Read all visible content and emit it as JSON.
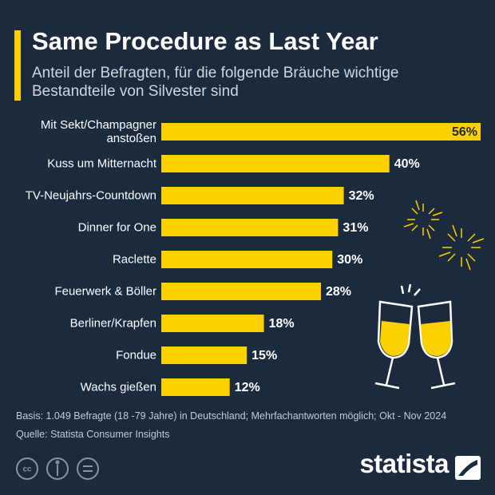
{
  "chart_data": {
    "type": "bar",
    "orientation": "horizontal",
    "title": "Same Procedure as Last Year",
    "subtitle": "Anteil der Befragten, für die folgende Bräuche wichtige Bestandteile von Silvester sind",
    "categories": [
      "Mit Sekt/Champagner anstoßen",
      "Kuss um Mitternacht",
      "TV-Neujahrs-Countdown",
      "Dinner for One",
      "Raclette",
      "Feuerwerk & Böller",
      "Berliner/Krapfen",
      "Fondue",
      "Wachs gießen"
    ],
    "values": [
      56,
      40,
      32,
      31,
      30,
      28,
      18,
      15,
      12
    ],
    "value_labels": [
      "56%",
      "40%",
      "32%",
      "31%",
      "30%",
      "28%",
      "18%",
      "15%",
      "12%"
    ],
    "color": "#fdd000",
    "note": "Basis: 1.049 Befragte (18 -79 Jahre) in Deutschland; Mehrfachantworten möglich; Okt - Nov 2024",
    "source": "Quelle: Statista Consumer Insights",
    "brand": "statista"
  }
}
